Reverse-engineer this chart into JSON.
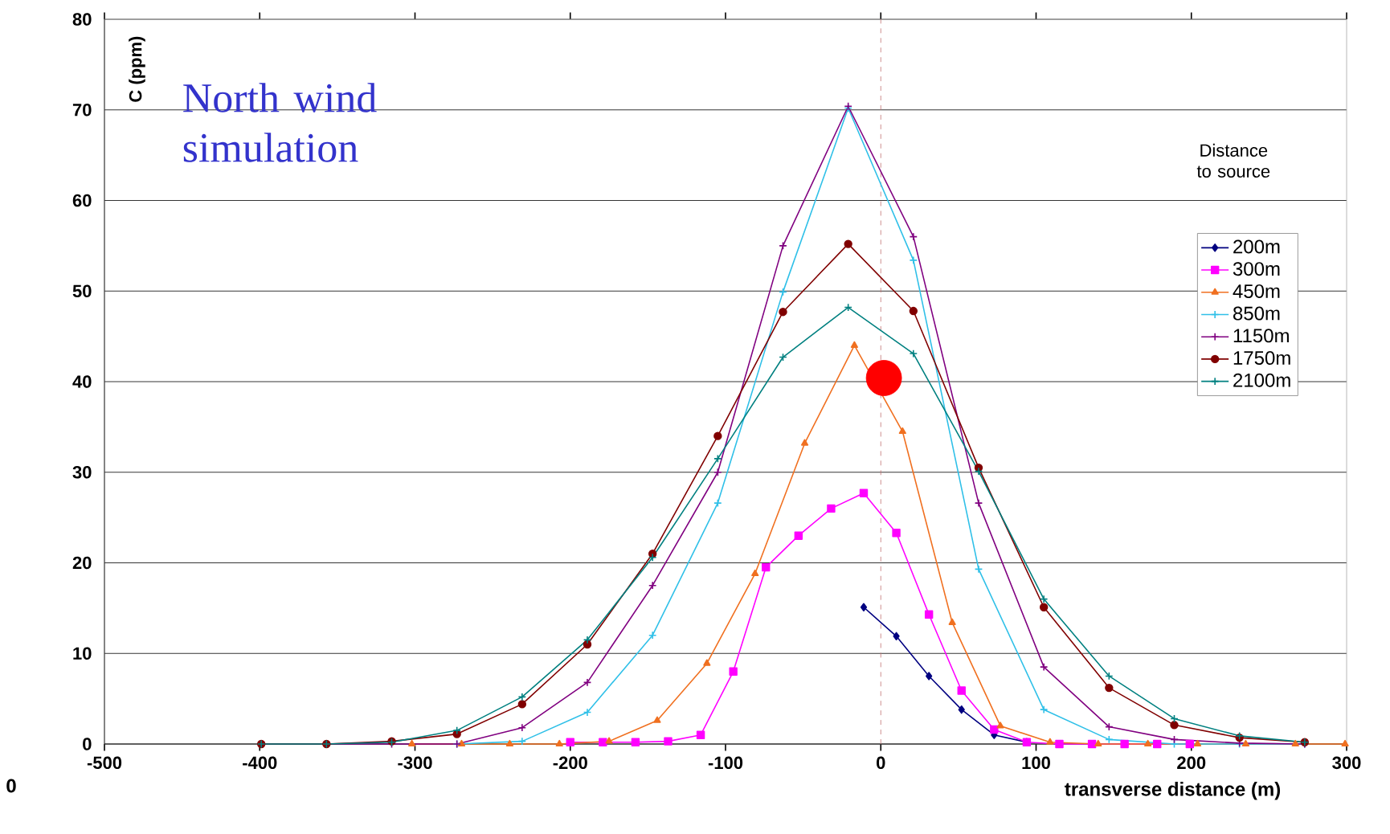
{
  "chart_data": {
    "type": "line",
    "xlabel": "transverse distance (m)",
    "ylabel": "C (ppm)",
    "legend_title": "Distance to source",
    "annotations": [
      "North wind simulation",
      "0"
    ],
    "xlim": [
      -500,
      300
    ],
    "ylim": [
      0,
      80
    ],
    "xticks": [
      -500,
      -400,
      -300,
      -200,
      -100,
      0,
      100,
      200,
      300
    ],
    "yticks": [
      0,
      10,
      20,
      30,
      40,
      50,
      60,
      70,
      80
    ],
    "grid": "y",
    "legend": "right",
    "ref_lines": [
      {
        "axis": "x",
        "value": 0,
        "color": "#c07070",
        "line_style": "dashed"
      }
    ],
    "series": [
      {
        "name": "200m",
        "color": "#000080",
        "marker": "diamond",
        "x": [
          -11,
          10,
          31,
          52,
          73,
          94
        ],
        "values": [
          15.1,
          11.9,
          7.5,
          3.8,
          1.0,
          0.2
        ]
      },
      {
        "name": "300m",
        "color": "#ff00ff",
        "marker": "square",
        "x": [
          -200,
          -179,
          -158,
          -137,
          -116,
          -95,
          -74,
          -53,
          -32,
          -11,
          10,
          31,
          52,
          73,
          94,
          115,
          136,
          157,
          178,
          199
        ],
        "values": [
          0.2,
          0.2,
          0.2,
          0.3,
          1.0,
          8.0,
          19.5,
          23,
          26,
          27.7,
          23.3,
          14.3,
          5.9,
          1.6,
          0.2,
          0,
          0,
          0,
          0,
          0
        ]
      },
      {
        "name": "450m",
        "color": "#f07020",
        "marker": "triangle",
        "x": [
          -302,
          -270,
          -239,
          -207,
          -175,
          -144,
          -112,
          -81,
          -49,
          -17,
          14,
          46,
          77,
          109,
          140,
          172,
          204,
          235,
          267,
          299
        ],
        "values": [
          0,
          0,
          0,
          0,
          0.3,
          2.6,
          8.9,
          18.8,
          33.2,
          44,
          34.5,
          13.4,
          2,
          0.2,
          0,
          0,
          0,
          0,
          0,
          0
        ]
      },
      {
        "name": "850m",
        "color": "#30c0e8",
        "marker": "cross",
        "x": [
          -273,
          -231,
          -189,
          -147,
          -105,
          -63,
          -21,
          21,
          63,
          105,
          147,
          189,
          231,
          273
        ],
        "values": [
          0,
          0.3,
          3.5,
          12,
          26.6,
          49.9,
          70.2,
          53.4,
          19.3,
          3.8,
          0.5,
          0,
          0,
          0
        ]
      },
      {
        "name": "1150m",
        "color": "#800080",
        "marker": "cross",
        "x": [
          -399,
          -357,
          -315,
          -273,
          -231,
          -189,
          -147,
          -105,
          -63,
          -21,
          21,
          63,
          105,
          147,
          189,
          231,
          273
        ],
        "values": [
          0,
          0,
          0,
          0,
          1.8,
          6.8,
          17.5,
          30,
          55,
          70.4,
          56,
          26.6,
          8.5,
          1.9,
          0.5,
          0.1,
          0
        ]
      },
      {
        "name": "1750m",
        "color": "#800000",
        "marker": "circle",
        "x": [
          -399,
          -357,
          -315,
          -273,
          -231,
          -189,
          -147,
          -105,
          -63,
          -21,
          21,
          63,
          105,
          147,
          189,
          231,
          273
        ],
        "values": [
          0,
          0,
          0.3,
          1.1,
          4.4,
          11,
          21,
          34,
          47.7,
          55.2,
          47.8,
          30.5,
          15.1,
          6.2,
          2.1,
          0.7,
          0.2
        ]
      },
      {
        "name": "2100m",
        "color": "#008080",
        "marker": "cross",
        "x": [
          -399,
          -357,
          -315,
          -273,
          -231,
          -189,
          -147,
          -105,
          -63,
          -21,
          21,
          63,
          105,
          147,
          189,
          231,
          273
        ],
        "values": [
          0,
          0,
          0.2,
          1.5,
          5.2,
          11.5,
          20.6,
          31.5,
          42.7,
          48.2,
          43.1,
          30.1,
          16,
          7.5,
          2.8,
          0.9,
          0.2
        ]
      },
      {
        "type": "scatter",
        "color": "#ff0000",
        "marker": "circle",
        "x": [
          2
        ],
        "values": [
          40.4
        ]
      }
    ]
  }
}
